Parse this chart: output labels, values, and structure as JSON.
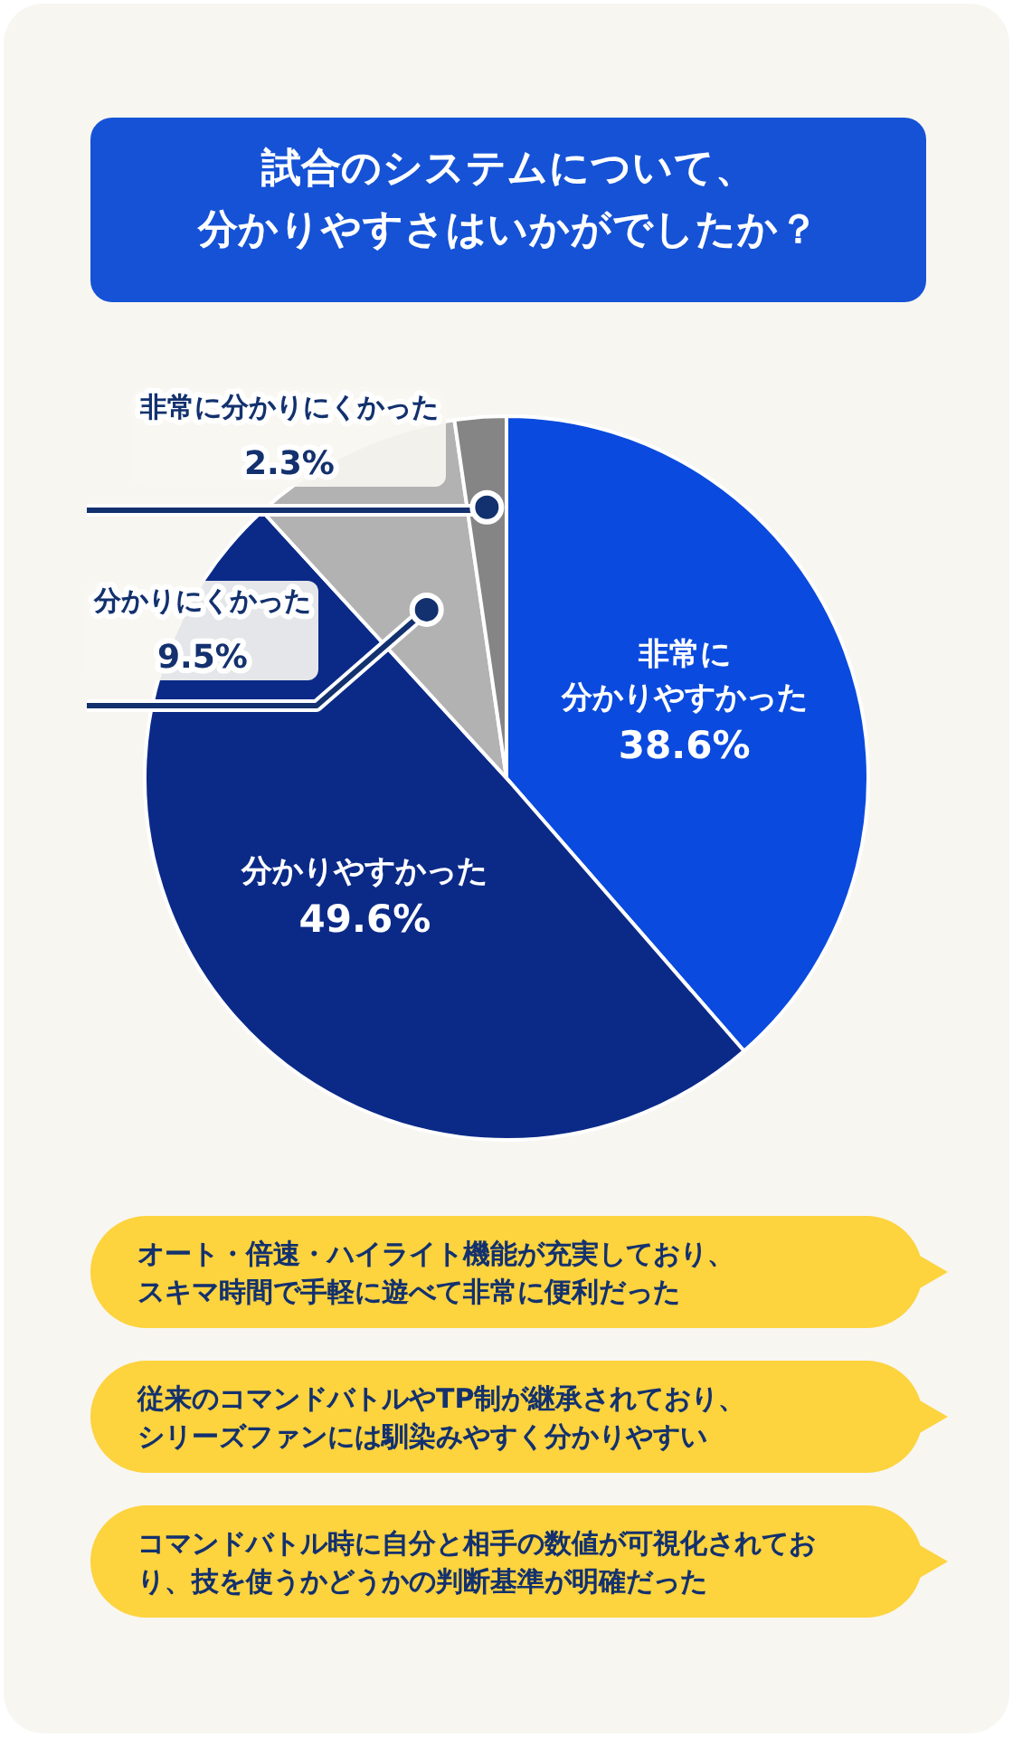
{
  "chart_data": {
    "type": "pie",
    "title": "試合のシステムについて、分かりやすさはいかがでしたか？",
    "categories": [
      "非常に分かりやすかった",
      "分かりやすかった",
      "分かりにくかった",
      "非常に分かりにくかった"
    ],
    "values": [
      38.6,
      49.6,
      9.5,
      2.3
    ],
    "value_labels": [
      "38.6%",
      "49.6%",
      "9.5%",
      "2.3%"
    ],
    "colors": [
      "#0a4ade",
      "#0b2a88",
      "#b2b2b2",
      "#858585"
    ],
    "annotations": [
      "オート・倍速・ハイライト機能が充実しており、スキマ時間で手軽に遊べて非常に便利だった",
      "従来のコマンドバトルやTP制が継承されており、シリーズファンには馴染みやすく分かりやすい",
      "コマンドバトル時に自分と相手の数値が可視化されており、技を使うかどうかの判断基準が明確だった"
    ]
  }
}
